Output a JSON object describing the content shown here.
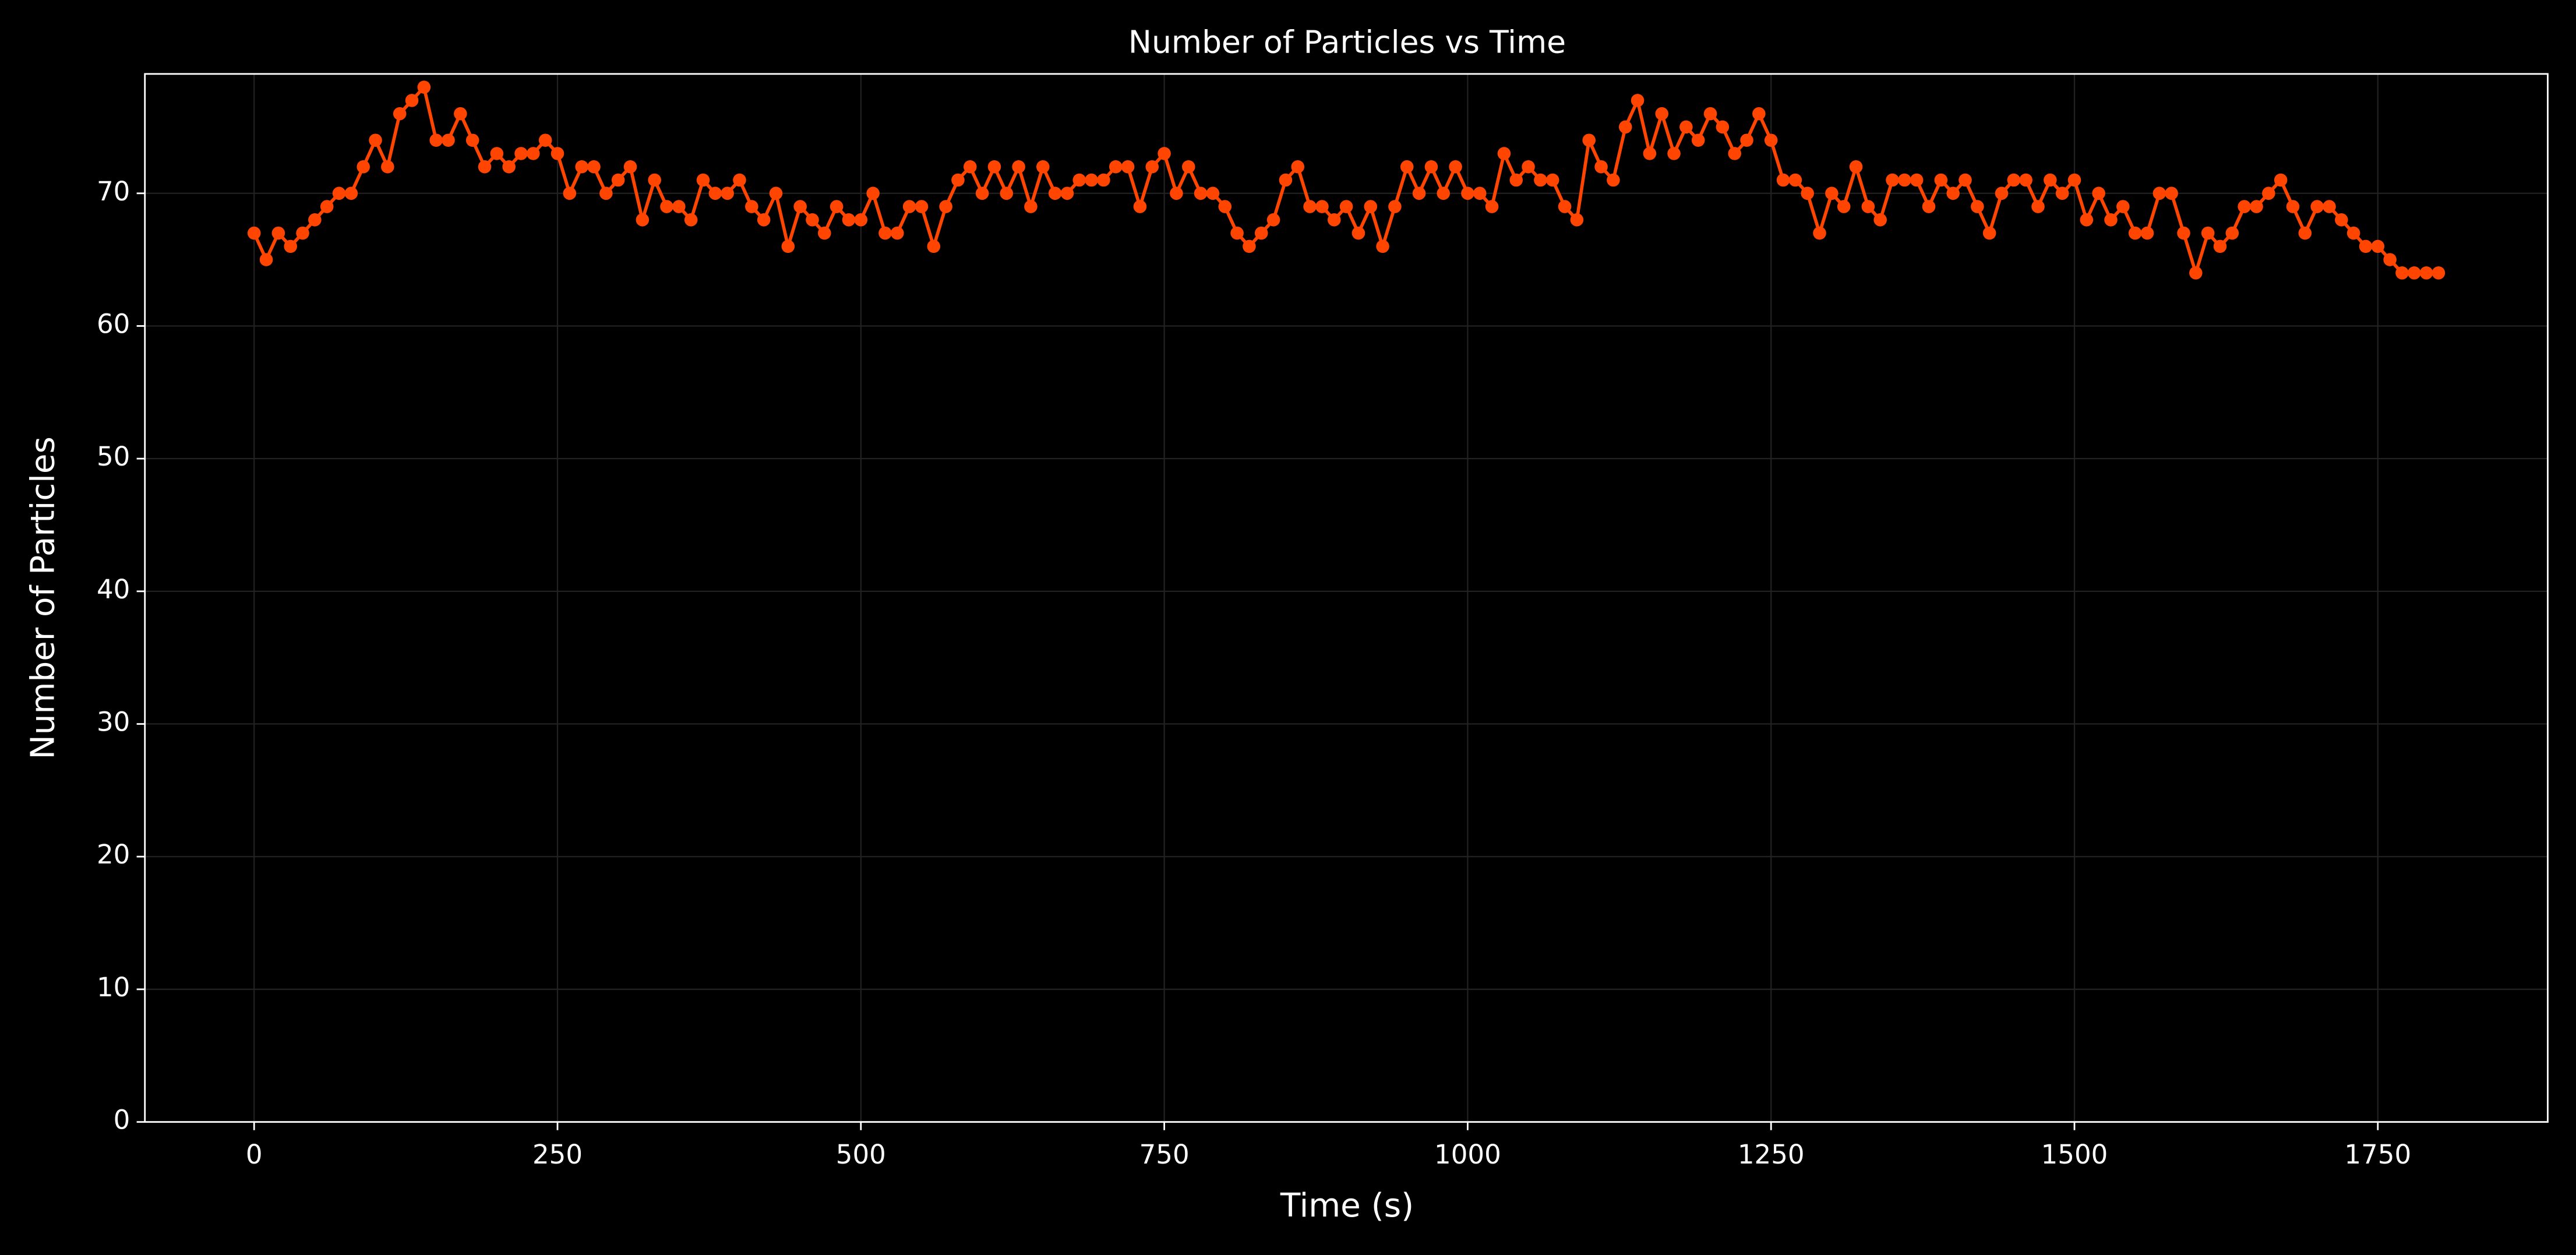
{
  "chart_data": {
    "type": "line",
    "title": "Number of Particles vs Time",
    "x_label": "Time (s)",
    "y_label": "Number of Particles",
    "x": [
      0,
      10,
      20,
      30,
      40,
      50,
      60,
      70,
      80,
      90,
      100,
      110,
      120,
      130,
      140,
      150,
      160,
      170,
      180,
      190,
      200,
      210,
      220,
      230,
      240,
      250,
      260,
      270,
      280,
      290,
      300,
      310,
      320,
      330,
      340,
      350,
      360,
      370,
      380,
      390,
      400,
      410,
      420,
      430,
      440,
      450,
      460,
      470,
      480,
      490,
      500,
      510,
      520,
      530,
      540,
      550,
      560,
      570,
      580,
      590,
      600,
      610,
      620,
      630,
      640,
      650,
      660,
      670,
      680,
      690,
      700,
      710,
      720,
      730,
      740,
      750,
      760,
      770,
      780,
      790,
      800,
      810,
      820,
      830,
      840,
      850,
      860,
      870,
      880,
      890,
      900,
      910,
      920,
      930,
      940,
      950,
      960,
      970,
      980,
      990,
      1000,
      1010,
      1020,
      1030,
      1040,
      1050,
      1060,
      1070,
      1080,
      1090,
      1100,
      1110,
      1120,
      1130,
      1140,
      1150,
      1160,
      1170,
      1180,
      1190,
      1200,
      1210,
      1220,
      1230,
      1240,
      1250,
      1260,
      1270,
      1280,
      1290,
      1300,
      1310,
      1320,
      1330,
      1340,
      1350,
      1360,
      1370,
      1380,
      1390,
      1400,
      1410,
      1420,
      1430,
      1440,
      1450,
      1460,
      1470,
      1480,
      1490,
      1500,
      1510,
      1520,
      1530,
      1540,
      1550,
      1560,
      1570,
      1580,
      1590,
      1600,
      1610,
      1620,
      1630,
      1640,
      1650,
      1660,
      1670,
      1680,
      1690,
      1700,
      1710,
      1720,
      1730,
      1740,
      1750,
      1760,
      1770,
      1780,
      1790,
      1800
    ],
    "series": [
      {
        "color": "#ff4500",
        "values": [
          67,
          65,
          67,
          66,
          67,
          68,
          69,
          70,
          70,
          72,
          74,
          72,
          76,
          77,
          78,
          74,
          74,
          76,
          74,
          72,
          73,
          72,
          73,
          73,
          74,
          73,
          70,
          72,
          72,
          70,
          71,
          72,
          68,
          71,
          69,
          69,
          68,
          71,
          70,
          70,
          71,
          69,
          68,
          70,
          66,
          69,
          68,
          67,
          69,
          68,
          68,
          70,
          67,
          67,
          69,
          69,
          66,
          69,
          71,
          72,
          70,
          72,
          70,
          72,
          69,
          72,
          70,
          70,
          71,
          71,
          71,
          72,
          72,
          69,
          72,
          73,
          70,
          72,
          70,
          70,
          69,
          67,
          66,
          67,
          68,
          71,
          72,
          69,
          69,
          68,
          69,
          67,
          69,
          66,
          69,
          72,
          70,
          72,
          70,
          72,
          70,
          70,
          69,
          73,
          71,
          72,
          71,
          71,
          69,
          68,
          74,
          72,
          71,
          75,
          77,
          73,
          76,
          73,
          75,
          74,
          76,
          75,
          73,
          74,
          76,
          74,
          71,
          71,
          70,
          67,
          70,
          69,
          72,
          69,
          68,
          71,
          71,
          71,
          69,
          71,
          70,
          71,
          69,
          67,
          70,
          71,
          71,
          69,
          71,
          70,
          71,
          68,
          70,
          68,
          69,
          67,
          67,
          70,
          70,
          67,
          64,
          67,
          66,
          67,
          69,
          69,
          70,
          71,
          69,
          67,
          69,
          69,
          68,
          67,
          66,
          66,
          65,
          64,
          64,
          64,
          64
        ]
      }
    ],
    "xlim": [
      -90,
      1890
    ],
    "ylim": [
      0,
      79
    ],
    "xticks": [
      0,
      250,
      500,
      750,
      1000,
      1250,
      1500,
      1750
    ],
    "yticks": [
      0,
      10,
      20,
      30,
      40,
      50,
      60,
      70
    ],
    "grid": true
  }
}
